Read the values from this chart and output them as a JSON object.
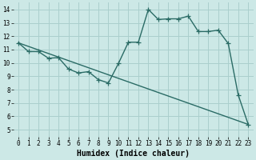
{
  "xlabel": "Humidex (Indice chaleur)",
  "xlim": [
    -0.5,
    23.5
  ],
  "ylim": [
    4.5,
    14.5
  ],
  "xticks": [
    0,
    1,
    2,
    3,
    4,
    5,
    6,
    7,
    8,
    9,
    10,
    11,
    12,
    13,
    14,
    15,
    16,
    17,
    18,
    19,
    20,
    21,
    22,
    23
  ],
  "yticks": [
    5,
    6,
    7,
    8,
    9,
    10,
    11,
    12,
    13,
    14
  ],
  "bg_color": "#cce8e6",
  "grid_color": "#aacfcd",
  "line_color": "#2a6b65",
  "curve_x": [
    0,
    1,
    2,
    3,
    4,
    5,
    6,
    7,
    8,
    9,
    10,
    11,
    12,
    13,
    14,
    15,
    16,
    17,
    18,
    19,
    20,
    21,
    22,
    23
  ],
  "curve_y": [
    11.5,
    10.85,
    10.85,
    10.35,
    10.4,
    9.55,
    9.25,
    9.35,
    8.75,
    8.5,
    9.95,
    11.55,
    11.55,
    14.0,
    13.25,
    13.3,
    13.3,
    13.5,
    12.35,
    12.35,
    12.45,
    11.45,
    7.6,
    5.4
  ],
  "line_x": [
    0,
    23
  ],
  "line_y": [
    11.5,
    5.4
  ],
  "marker": "+",
  "markersize": 4,
  "linewidth": 1.0,
  "tick_fontsize": 5.5,
  "xlabel_fontsize": 7
}
